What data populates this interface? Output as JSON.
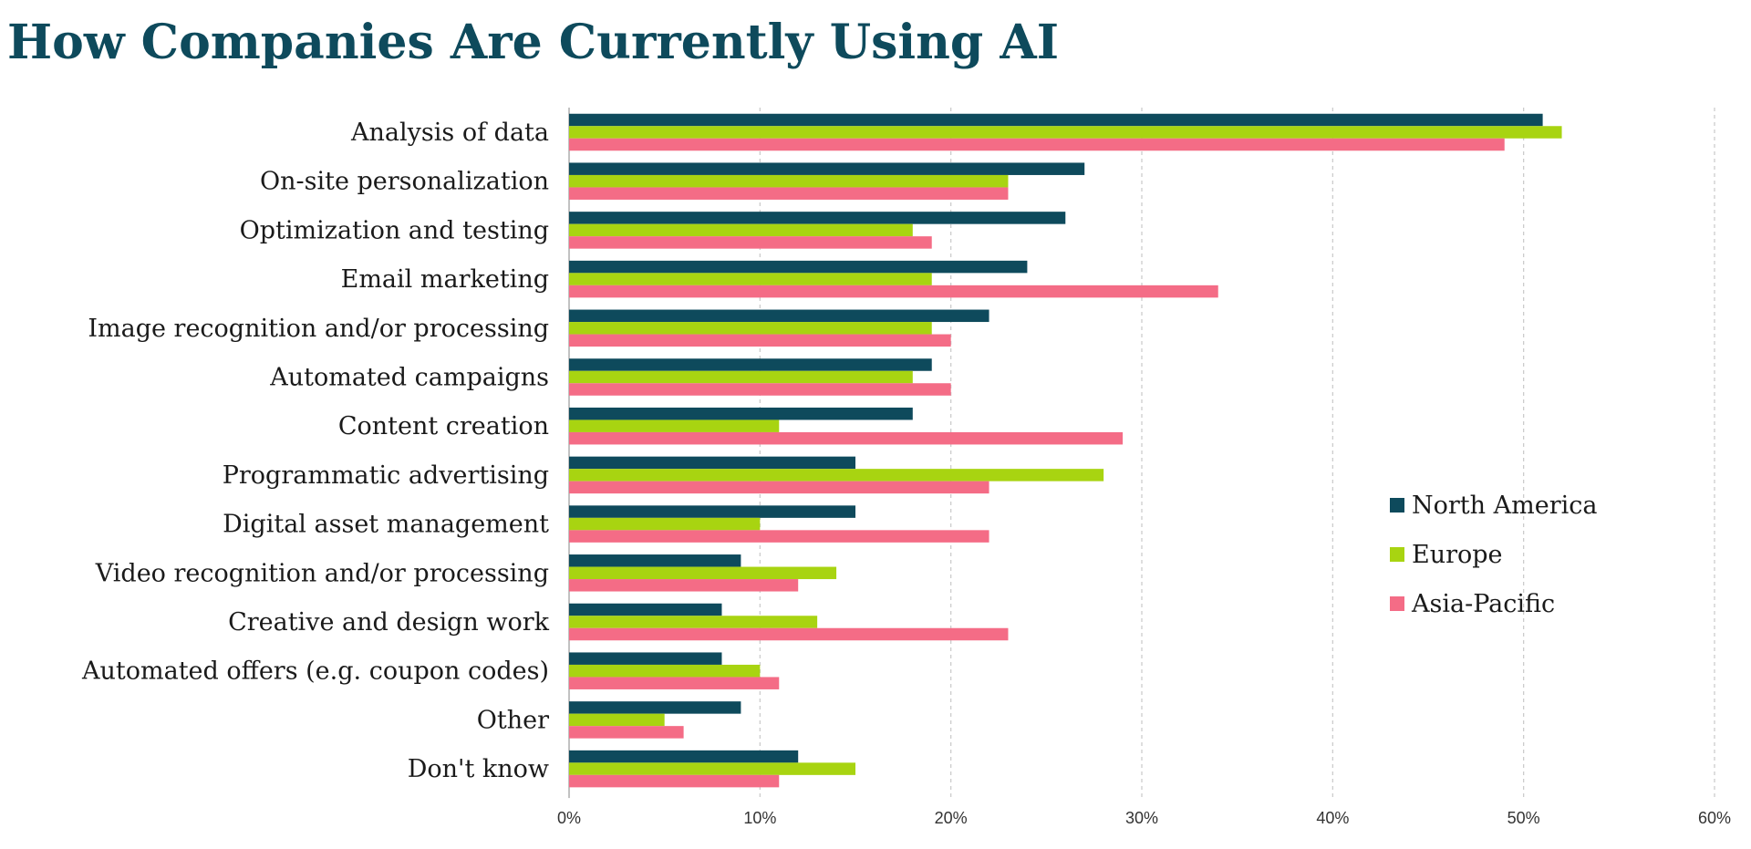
{
  "chart_data": {
    "type": "bar",
    "orientation": "horizontal",
    "title": "How Companies Are Currently Using AI",
    "categories": [
      "Analysis of data",
      "On-site personalization",
      "Optimization and testing",
      "Email marketing",
      "Image recognition and/or processing",
      "Automated campaigns",
      "Content creation",
      "Programmatic advertising",
      "Digital asset management",
      "Video recognition and/or processing",
      "Creative and design work",
      "Automated offers (e.g. coupon codes)",
      "Other",
      "Don't know"
    ],
    "series": [
      {
        "name": "North America",
        "color": "#0e4a5c",
        "values": [
          51,
          27,
          26,
          24,
          22,
          19,
          18,
          15,
          15,
          9,
          8,
          8,
          9,
          12
        ]
      },
      {
        "name": "Europe",
        "color": "#a8d411",
        "values": [
          52,
          23,
          18,
          19,
          19,
          18,
          11,
          28,
          10,
          14,
          13,
          10,
          5,
          15
        ]
      },
      {
        "name": "Asia-Pacific",
        "color": "#f46c86",
        "values": [
          49,
          23,
          19,
          34,
          20,
          20,
          29,
          22,
          22,
          12,
          23,
          11,
          6,
          11
        ]
      }
    ],
    "xlim": [
      0,
      60
    ],
    "xticks": [
      0,
      10,
      20,
      30,
      40,
      50,
      60
    ],
    "tick_labels": [
      "0%",
      "10%",
      "20%",
      "30%",
      "40%",
      "50%",
      "60%"
    ],
    "xlabel": "",
    "ylabel": "",
    "grid": "vertical dashed",
    "legend_position": "right"
  }
}
